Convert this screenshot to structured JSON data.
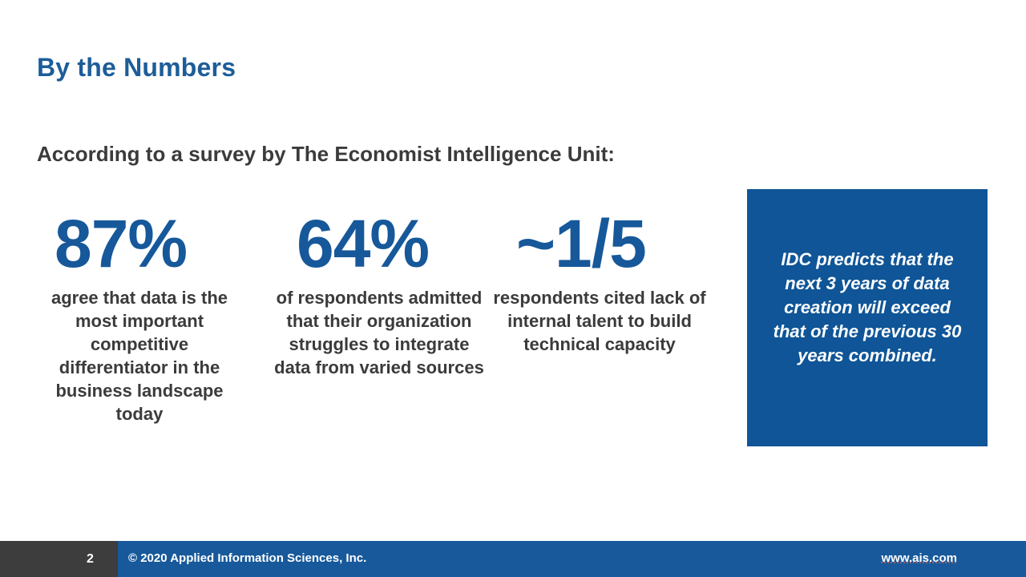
{
  "slide": {
    "title": "By the Numbers",
    "subtitle": "According to a survey by The Economist Intelligence Unit:"
  },
  "stats": [
    {
      "value": "87%",
      "description": "agree that data is the most important competitive differentiator in the business landscape today"
    },
    {
      "value": "64%",
      "description": "of respondents admitted that their organization struggles to integrate data from varied sources"
    },
    {
      "value": "~1/5",
      "description": "respondents cited lack of internal talent to build technical capacity"
    }
  ],
  "callout": {
    "text": "IDC predicts that the next 3 years of data creation will exceed that of the previous 30 years combined."
  },
  "footer": {
    "page_number": "2",
    "copyright": "© 2020 Applied Information Sciences, Inc.",
    "website": "www.ais.com"
  },
  "colors": {
    "accent_blue": "#16589a",
    "footer_blue": "#17599a",
    "callout_blue": "#0f5597",
    "text_gray": "#3b3b3b",
    "page_box_gray": "#3d3d3d"
  }
}
